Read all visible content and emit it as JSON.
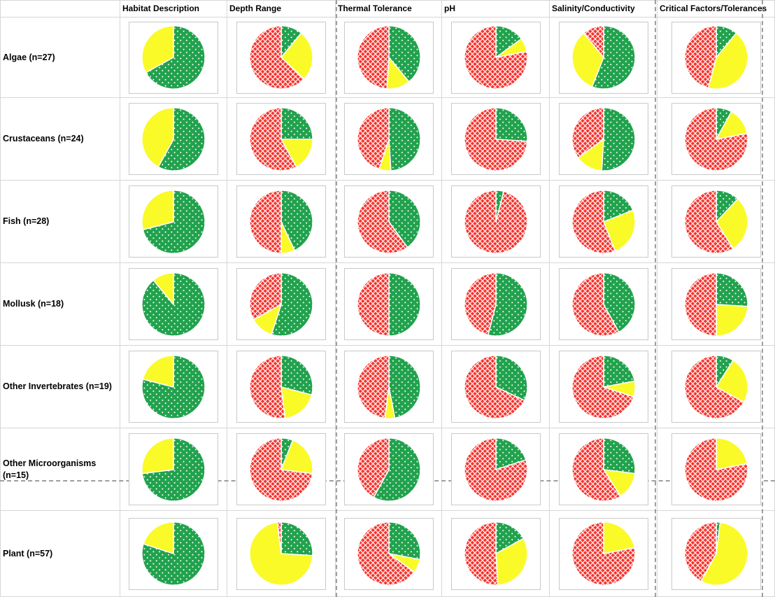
{
  "palette": {
    "green": "#21A24D",
    "red": "#F9312B",
    "yellow": "#FAFA28",
    "frame_border": "#c8c9ca",
    "gridline": "#d6d6d6",
    "page_break_dash": "#9e9e9e"
  },
  "patterns": {
    "green": "white-dots",
    "red": "white-crosshatch",
    "yellow": "solid"
  },
  "chart_data": {
    "type": "pie",
    "layout": "grid of 7 rows x 6 columns of pie charts inside a spreadsheet-like table",
    "slice_order": [
      "green",
      "yellow",
      "red"
    ],
    "start_angle": "12 o'clock, clockwise",
    "values_unit": "percent of pie",
    "columns": [
      "Habitat Description",
      "Depth Range",
      "Thermal Tolerance",
      "pH",
      "Salinity/Conductivity",
      "Critical Factors/Tolerances"
    ],
    "rows": [
      {
        "label": "Algae (n=27)",
        "pies": [
          [
            67,
            33,
            0
          ],
          [
            11,
            26,
            63
          ],
          [
            39,
            12,
            49
          ],
          [
            15,
            7,
            78
          ],
          [
            56,
            33,
            11
          ],
          [
            11,
            43,
            46
          ]
        ]
      },
      {
        "label": "Crustaceans (n=24)",
        "pies": [
          [
            58,
            42,
            0
          ],
          [
            25,
            17,
            58
          ],
          [
            49,
            6,
            45
          ],
          [
            26,
            0,
            74
          ],
          [
            51,
            14,
            35
          ],
          [
            8,
            14,
            78
          ]
        ]
      },
      {
        "label": "Fish (n=28)",
        "pies": [
          [
            71,
            29,
            0
          ],
          [
            43,
            7,
            50
          ],
          [
            40,
            0,
            60
          ],
          [
            4,
            0,
            96
          ],
          [
            19,
            25,
            56
          ],
          [
            12,
            29,
            59
          ]
        ]
      },
      {
        "label": "Mollusk (n=18)",
        "pies": [
          [
            89,
            11,
            0
          ],
          [
            55,
            12,
            33
          ],
          [
            50,
            0,
            50
          ],
          [
            54,
            0,
            46
          ],
          [
            42,
            0,
            58
          ],
          [
            26,
            24,
            50
          ]
        ]
      },
      {
        "label": "Other Invertebrates (n=19)",
        "pies": [
          [
            79,
            21,
            0
          ],
          [
            29,
            19,
            52
          ],
          [
            47,
            5,
            48
          ],
          [
            32,
            0,
            68
          ],
          [
            22,
            8,
            70
          ],
          [
            9,
            24,
            67
          ]
        ]
      },
      {
        "label": "Other Microorganisms (n=15)",
        "pies": [
          [
            73,
            27,
            0
          ],
          [
            6,
            21,
            73
          ],
          [
            58,
            0,
            42
          ],
          [
            20,
            0,
            80
          ],
          [
            27,
            14,
            59
          ],
          [
            0,
            22,
            78
          ]
        ]
      },
      {
        "label": "Plant (n=57)",
        "pies": [
          [
            80,
            20,
            0
          ],
          [
            26,
            72,
            2
          ],
          [
            28,
            7,
            65
          ],
          [
            17,
            32,
            51
          ],
          [
            0,
            22,
            78
          ],
          [
            2,
            56,
            42
          ]
        ]
      }
    ]
  }
}
